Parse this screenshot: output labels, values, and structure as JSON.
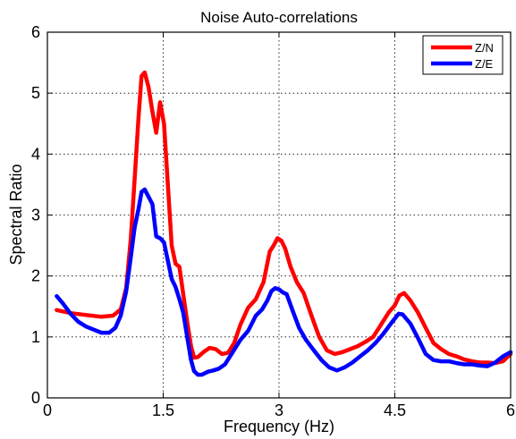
{
  "chart_data": {
    "type": "line",
    "title": "Noise Auto-correlations",
    "xlabel": "Frequency (Hz)",
    "ylabel": "Spectral Ratio",
    "xlim": [
      0,
      6
    ],
    "ylim": [
      0,
      6
    ],
    "xticks": [
      0,
      1.5,
      3,
      4.5,
      6
    ],
    "xtick_labels": [
      "0",
      "1.5",
      "3",
      "4.5",
      "6"
    ],
    "yticks": [
      0,
      1,
      2,
      3,
      4,
      5,
      6
    ],
    "ytick_labels": [
      "0",
      "1",
      "2",
      "3",
      "4",
      "5",
      "6"
    ],
    "grid": true,
    "legend_position": "top-right",
    "series": [
      {
        "name": "Z/N",
        "color": "#ff0000",
        "x": [
          0.12,
          0.3,
          0.5,
          0.7,
          0.85,
          0.95,
          1.02,
          1.08,
          1.13,
          1.18,
          1.22,
          1.26,
          1.31,
          1.36,
          1.41,
          1.46,
          1.51,
          1.56,
          1.61,
          1.66,
          1.71,
          1.76,
          1.81,
          1.86,
          1.9,
          1.95,
          2.02,
          2.1,
          2.18,
          2.26,
          2.34,
          2.42,
          2.5,
          2.6,
          2.7,
          2.8,
          2.88,
          2.93,
          2.98,
          3.03,
          3.08,
          3.15,
          3.23,
          3.32,
          3.42,
          3.52,
          3.62,
          3.72,
          3.82,
          3.92,
          4.02,
          4.12,
          4.22,
          4.32,
          4.42,
          4.5,
          4.56,
          4.62,
          4.7,
          4.8,
          4.9,
          5.0,
          5.1,
          5.2,
          5.3,
          5.4,
          5.5,
          5.6,
          5.7,
          5.8,
          5.9,
          6.0
        ],
        "values": [
          1.44,
          1.39,
          1.36,
          1.33,
          1.35,
          1.45,
          1.8,
          2.6,
          3.6,
          4.6,
          5.28,
          5.34,
          5.1,
          4.7,
          4.35,
          4.85,
          4.5,
          3.5,
          2.5,
          2.2,
          2.15,
          1.7,
          1.25,
          0.85,
          0.66,
          0.67,
          0.75,
          0.82,
          0.8,
          0.72,
          0.74,
          0.9,
          1.2,
          1.48,
          1.62,
          1.9,
          2.4,
          2.5,
          2.62,
          2.58,
          2.45,
          2.15,
          1.9,
          1.72,
          1.35,
          1.0,
          0.78,
          0.72,
          0.75,
          0.8,
          0.85,
          0.92,
          1.0,
          1.2,
          1.4,
          1.52,
          1.68,
          1.72,
          1.6,
          1.4,
          1.15,
          0.9,
          0.8,
          0.72,
          0.68,
          0.63,
          0.6,
          0.58,
          0.58,
          0.57,
          0.6,
          0.72
        ]
      },
      {
        "name": "Z/E",
        "color": "#0000ff",
        "x": [
          0.12,
          0.2,
          0.3,
          0.4,
          0.5,
          0.6,
          0.7,
          0.8,
          0.88,
          0.95,
          1.02,
          1.08,
          1.13,
          1.18,
          1.22,
          1.26,
          1.31,
          1.36,
          1.41,
          1.46,
          1.51,
          1.56,
          1.61,
          1.66,
          1.71,
          1.76,
          1.81,
          1.86,
          1.9,
          1.95,
          2.0,
          2.08,
          2.15,
          2.22,
          2.3,
          2.4,
          2.5,
          2.6,
          2.7,
          2.78,
          2.85,
          2.9,
          2.95,
          3.0,
          3.05,
          3.1,
          3.18,
          3.26,
          3.35,
          3.45,
          3.55,
          3.65,
          3.75,
          3.85,
          3.95,
          4.05,
          4.15,
          4.25,
          4.35,
          4.45,
          4.55,
          4.6,
          4.7,
          4.8,
          4.9,
          5.0,
          5.1,
          5.2,
          5.3,
          5.4,
          5.5,
          5.6,
          5.7,
          5.8,
          5.9,
          6.0
        ],
        "values": [
          1.67,
          1.55,
          1.38,
          1.25,
          1.17,
          1.12,
          1.07,
          1.07,
          1.15,
          1.35,
          1.75,
          2.3,
          2.8,
          3.1,
          3.38,
          3.42,
          3.3,
          3.18,
          2.65,
          2.62,
          2.55,
          2.25,
          1.95,
          1.82,
          1.62,
          1.4,
          1.0,
          0.62,
          0.44,
          0.38,
          0.38,
          0.43,
          0.45,
          0.48,
          0.55,
          0.75,
          0.95,
          1.1,
          1.35,
          1.45,
          1.6,
          1.75,
          1.8,
          1.78,
          1.73,
          1.7,
          1.42,
          1.15,
          0.95,
          0.78,
          0.62,
          0.5,
          0.45,
          0.5,
          0.58,
          0.68,
          0.78,
          0.9,
          1.05,
          1.22,
          1.38,
          1.37,
          1.22,
          0.98,
          0.72,
          0.62,
          0.6,
          0.6,
          0.57,
          0.55,
          0.55,
          0.53,
          0.52,
          0.58,
          0.68,
          0.75
        ]
      }
    ]
  }
}
